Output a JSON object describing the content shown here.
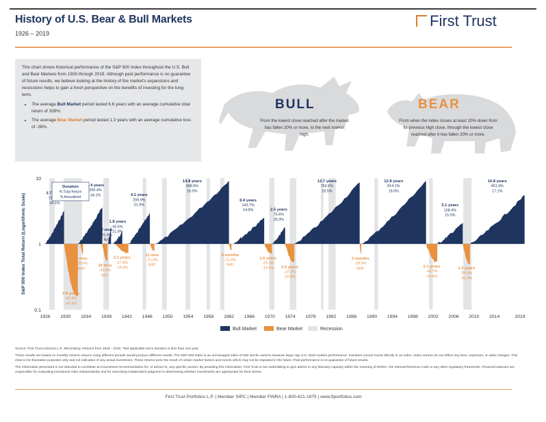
{
  "header": {
    "title": "History of U.S. Bear & Bull Markets",
    "subtitle": "1926 – 2019",
    "logo_text": "First Trust"
  },
  "intro": {
    "paragraph": "This chart shows historical performance of the S&P 500 Index throughout the U.S. Bull and Bear Markets from 1926 through 2019. Although past performance is no guarantee of future results, we believe looking at the history of the market's expansions and recessions helps to gain a fresh perspective on the benefits of investing for the long-term.",
    "bullet1_pre": "The average ",
    "bullet1_key": "Bull Market",
    "bullet1_post": " period lasted 6.6 years with an average cumulative total return of 339%.",
    "bullet2_pre": "The average ",
    "bullet2_key": "Bear Market",
    "bullet2_post": " period lasted 1.3 years with an average cumulative loss of -38%."
  },
  "bull": {
    "heading": "BULL",
    "description": "From the lowest close reached after the market has fallen 20% or more, to the next market high."
  },
  "bear": {
    "heading": "BEAR",
    "description": "From when the index closes at least 20% down from its previous high close, through the lowest close reached after it has fallen 20% or more."
  },
  "colors": {
    "bull": "#1f3560",
    "bear": "#e8913f",
    "recession": "#e3e4e6",
    "accent": "#e07b28"
  },
  "chart_data": {
    "type": "area",
    "ylabel": "S&P 500 Index Total Return (Logarithmic Scale)",
    "yscale": "log",
    "ylim": [
      0.1,
      10
    ],
    "yticks": [
      "10",
      "1",
      "0.1"
    ],
    "xlim": [
      1926,
      2019
    ],
    "xticks": [
      "1926",
      "1930",
      "1934",
      "1938",
      "1942",
      "1946",
      "1950",
      "1954",
      "1958",
      "1962",
      "1966",
      "1970",
      "1974",
      "1978",
      "1982",
      "1986",
      "1990",
      "1994",
      "1998",
      "2002",
      "2006",
      "2010",
      "2014",
      "2019"
    ],
    "legend": {
      "position": "bottom",
      "items": [
        "Bull Market",
        "Bear Market",
        "Recession"
      ]
    },
    "key": [
      "Duration",
      "% Total Return",
      "% Annualized"
    ],
    "recessions": [
      [
        1926.8,
        1927.9
      ],
      [
        1929.6,
        1933.2
      ],
      [
        1937.4,
        1938.5
      ],
      [
        1945.1,
        1945.8
      ],
      [
        1948.9,
        1949.8
      ],
      [
        1953.5,
        1954.4
      ],
      [
        1957.6,
        1958.3
      ],
      [
        1960.3,
        1961.1
      ],
      [
        1969.9,
        1970.9
      ],
      [
        1973.9,
        1975.2
      ],
      [
        1980.0,
        1980.5
      ],
      [
        1981.5,
        1982.9
      ],
      [
        1990.5,
        1991.2
      ],
      [
        2001.2,
        2001.9
      ],
      [
        2007.9,
        2009.5
      ]
    ],
    "series": [
      {
        "name": "Bull Market",
        "segments": [
          {
            "start": 1926.0,
            "end": 1929.7,
            "peak": 3.2,
            "labels": [
              "3.7 years",
              "193.3%",
              "34.1%"
            ]
          },
          {
            "start": 1932.4,
            "end": 1937.2,
            "peak": 3.6,
            "labels": [
              "4.4 years",
              "265.4%",
              "34.1%"
            ]
          },
          {
            "start": 1938.3,
            "end": 1938.9,
            "peak": 1.9,
            "labels": [
              "2 mos",
              "91.6%",
              "N/A"
            ]
          },
          {
            "start": 1939.3,
            "end": 1941.1,
            "peak": 1.5,
            "labels": [
              "1.8 years",
              "43.6%",
              "21.8%"
            ]
          },
          {
            "start": 1942.3,
            "end": 1946.5,
            "peak": 3.0,
            "labels": [
              "4.1 years",
              "209.9%",
              "31.9%"
            ]
          },
          {
            "start": 1947.6,
            "end": 1962.0,
            "peak": 9.1,
            "labels": [
              "14.8 years",
              "908.5%",
              "16.9%"
            ]
          },
          {
            "start": 1962.6,
            "end": 1968.9,
            "peak": 2.5,
            "labels": [
              "6.4 years",
              "143.7%",
              "14.9%"
            ]
          },
          {
            "start": 1970.5,
            "end": 1973.0,
            "peak": 1.8,
            "labels": [
              "2.5 years",
              "75.6%",
              "25.3%"
            ]
          },
          {
            "start": 1974.8,
            "end": 1987.6,
            "peak": 8.6,
            "labels": [
              "12.7 years",
              "762.6%",
              "18.5%"
            ]
          },
          {
            "start": 1987.9,
            "end": 2000.6,
            "peak": 9.1,
            "labels": [
              "12.8 years",
              "814.1%",
              "19.0%"
            ]
          },
          {
            "start": 2002.8,
            "end": 2007.8,
            "peak": 2.1,
            "labels": [
              "5.1 years",
              "108.4%",
              "15.5%"
            ]
          },
          {
            "start": 2009.2,
            "end": 2019.9,
            "peak": 5.5,
            "labels": [
              "10.8 years",
              "451.3%",
              "17.1%"
            ]
          }
        ]
      },
      {
        "name": "Bear Market",
        "segments": [
          {
            "start": 1929.7,
            "end": 1932.4,
            "trough": 0.16,
            "labels": [
              "2.8 years",
              "-83.4%",
              "-47.8%"
            ]
          },
          {
            "start": 1932.9,
            "end": 1933.4,
            "trough": 0.7,
            "labels": [
              "6 mos",
              "-29.5%",
              "N/A*"
            ]
          },
          {
            "start": 1937.2,
            "end": 1938.2,
            "trough": 0.55,
            "labels": [
              "10 mos",
              "-42.0%",
              "N/A*"
            ]
          },
          {
            "start": 1939.8,
            "end": 1942.3,
            "trough": 0.72,
            "labels": [
              "2.1 years",
              "-27.8%",
              "-14.5%"
            ]
          },
          {
            "start": 1946.5,
            "end": 1947.4,
            "trough": 0.79,
            "labels": [
              "11 mos",
              "-21.0%",
              "N/A*"
            ]
          },
          {
            "start": 1962.0,
            "end": 1962.5,
            "trough": 0.79,
            "labels": [
              "4 months",
              "-21.0%",
              "N/A*"
            ]
          },
          {
            "start": 1968.9,
            "end": 1970.4,
            "trough": 0.71,
            "labels": [
              "1.6 years",
              "-29.3%",
              "-19.6%"
            ]
          },
          {
            "start": 1973.0,
            "end": 1974.8,
            "trough": 0.52,
            "labels": [
              "2.0 years",
              "-37.2%",
              "-20.8%"
            ]
          },
          {
            "start": 1987.6,
            "end": 1987.9,
            "trough": 0.7,
            "labels": [
              "3 months",
              "-29.5%",
              "N/A*"
            ]
          },
          {
            "start": 2000.6,
            "end": 2002.8,
            "trough": 0.53,
            "labels": [
              "2.1 years",
              "-44.7%",
              "-24.8%"
            ]
          },
          {
            "start": 2007.8,
            "end": 2009.2,
            "trough": 0.5,
            "labels": [
              "1.3 years",
              "-50.9%",
              "-41.4%"
            ]
          }
        ]
      }
    ]
  },
  "footer": {
    "source": "Source: First Trust Advisors L.P., Bloomberg. Returns from 1926 - 2019. *Not applicable since duration is less than one year.",
    "note1": "These results are based on monthly returns–returns using different periods would produce different results. The S&P 500 Index is an unmanaged index of 500 stocks used to measure large-cap U.S. stock market performance. Investors cannot invest directly in an index. Index returns do not reflect any fees, expenses, or sales charges. This chart is for illustrative purposes only and not indicative of any actual investment. These returns were the result of certain market factors and events which may not be repeated in the future. Past performance is no guarantee of future results.",
    "note2": "The information presented is not intended to constitute an investment recommendation for, or advice to, any specific person. By providing this information, First Trust is not undertaking to give advice in any fiduciary capacity within the meaning of ERISA, the Internal Revenue Code or any other regulatory framework. Financial advisors are responsible for evaluating investment risks independently and for exercising independent judgment in determining whether investments are appropriate for their clients.",
    "contact": "First Trust Portfolios L.P.  |  Member SIPC  |  Member FINRA  |  1-800-621-1675  |  www.ftportfolios.com"
  }
}
